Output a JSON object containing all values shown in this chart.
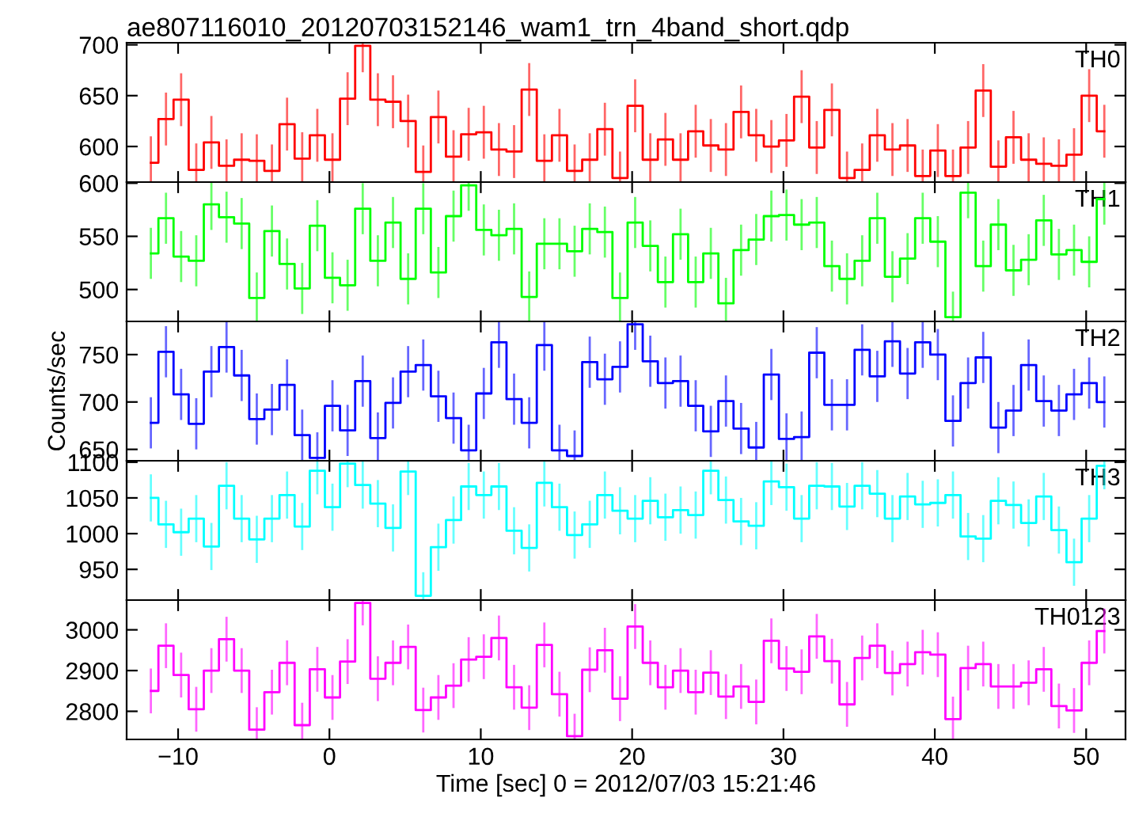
{
  "chart_data": [
    {
      "type": "step",
      "title": "ae807116010_20120703152146_wam1_trn_4band_short.qdp",
      "tick_labels": "y",
      "x": [
        -11.8,
        -10.8,
        -9.8,
        -8.8,
        -7.8,
        -6.8,
        -5.8,
        -4.8,
        -3.8,
        -2.8,
        -1.8,
        -0.8,
        0.2,
        1.2,
        2.2,
        3.2,
        4.2,
        5.2,
        6.2,
        7.2,
        8.2,
        9.2,
        10.2,
        11.2,
        12.2,
        13.2,
        14.2,
        15.2,
        16.2,
        17.2,
        18.2,
        19.2,
        20.2,
        21.2,
        22.2,
        23.2,
        24.2,
        25.2,
        26.2,
        27.2,
        28.2,
        29.2,
        30.2,
        31.2,
        32.2,
        33.2,
        34.2,
        35.2,
        36.2,
        37.2,
        38.2,
        39.2,
        40.2,
        41.2,
        42.2,
        43.2,
        44.2,
        45.2,
        46.2,
        47.2,
        48.2,
        49.2,
        50.2,
        51.2
      ],
      "xlim": [
        -13.4,
        52.6
      ],
      "xticks": [
        -10,
        0,
        10,
        20,
        30,
        40,
        50
      ],
      "ylim": [
        565,
        702
      ],
      "yticks": [
        600,
        650,
        700
      ],
      "series": [
        {
          "name": "TH0",
          "color": "#ff0000",
          "values": [
            584,
            627,
            646,
            577,
            604,
            581,
            587,
            586,
            576,
            622,
            588,
            611,
            587,
            647,
            699,
            646,
            644,
            625,
            575,
            629,
            590,
            612,
            614,
            597,
            595,
            656,
            586,
            611,
            576,
            587,
            617,
            569,
            640,
            587,
            607,
            587,
            615,
            601,
            597,
            634,
            611,
            600,
            606,
            649,
            599,
            636,
            569,
            577,
            611,
            597,
            601,
            571,
            596,
            571,
            599,
            655,
            580,
            609,
            587,
            583,
            581,
            592,
            650,
            615
          ],
          "errors": [
            26,
            26,
            26,
            26,
            26,
            26,
            26,
            26,
            26,
            26,
            26,
            26,
            26,
            26,
            26,
            26,
            26,
            26,
            26,
            26,
            26,
            26,
            26,
            26,
            26,
            26,
            26,
            26,
            26,
            26,
            26,
            26,
            26,
            26,
            26,
            26,
            26,
            26,
            26,
            26,
            26,
            26,
            26,
            26,
            26,
            26,
            26,
            26,
            26,
            26,
            26,
            26,
            26,
            26,
            26,
            26,
            26,
            26,
            26,
            26,
            26,
            26,
            26,
            26
          ]
        }
      ]
    },
    {
      "type": "step",
      "tick_labels": "y",
      "x": [
        -11.8,
        -10.8,
        -9.8,
        -8.8,
        -7.8,
        -6.8,
        -5.8,
        -4.8,
        -3.8,
        -2.8,
        -1.8,
        -0.8,
        0.2,
        1.2,
        2.2,
        3.2,
        4.2,
        5.2,
        6.2,
        7.2,
        8.2,
        9.2,
        10.2,
        11.2,
        12.2,
        13.2,
        14.2,
        15.2,
        16.2,
        17.2,
        18.2,
        19.2,
        20.2,
        21.2,
        22.2,
        23.2,
        24.2,
        25.2,
        26.2,
        27.2,
        28.2,
        29.2,
        30.2,
        31.2,
        32.2,
        33.2,
        34.2,
        35.2,
        36.2,
        37.2,
        38.2,
        39.2,
        40.2,
        41.2,
        42.2,
        43.2,
        44.2,
        45.2,
        46.2,
        47.2,
        48.2,
        49.2,
        50.2,
        51.2
      ],
      "xlim": [
        -13.4,
        52.6
      ],
      "xticks": [
        -10,
        0,
        10,
        20,
        30,
        40,
        50
      ],
      "ylim": [
        470,
        601
      ],
      "yticks": [
        500,
        550,
        600
      ],
      "series": [
        {
          "name": "TH1",
          "color": "#00ff00",
          "values": [
            534,
            567,
            531,
            527,
            580,
            568,
            562,
            492,
            555,
            524,
            501,
            560,
            511,
            504,
            576,
            527,
            563,
            510,
            576,
            516,
            569,
            598,
            556,
            551,
            557,
            493,
            543,
            543,
            536,
            557,
            554,
            492,
            563,
            541,
            507,
            552,
            507,
            534,
            487,
            537,
            547,
            569,
            570,
            561,
            563,
            522,
            510,
            527,
            567,
            512,
            529,
            567,
            545,
            474,
            591,
            522,
            561,
            518,
            528,
            565,
            533,
            537,
            526,
            585
          ],
          "errors": [
            24,
            24,
            24,
            24,
            24,
            24,
            24,
            24,
            24,
            24,
            24,
            24,
            24,
            24,
            24,
            24,
            24,
            24,
            24,
            24,
            24,
            24,
            24,
            24,
            24,
            24,
            24,
            24,
            24,
            24,
            24,
            24,
            24,
            24,
            24,
            24,
            24,
            24,
            24,
            24,
            24,
            24,
            24,
            24,
            24,
            24,
            24,
            24,
            24,
            24,
            24,
            24,
            24,
            24,
            24,
            24,
            24,
            24,
            24,
            24,
            24,
            24,
            24,
            24
          ]
        }
      ]
    },
    {
      "type": "step",
      "tick_labels": "y",
      "ylabel": "Counts/sec",
      "x": [
        -11.8,
        -10.8,
        -9.8,
        -8.8,
        -7.8,
        -6.8,
        -5.8,
        -4.8,
        -3.8,
        -2.8,
        -1.8,
        -0.8,
        0.2,
        1.2,
        2.2,
        3.2,
        4.2,
        5.2,
        6.2,
        7.2,
        8.2,
        9.2,
        10.2,
        11.2,
        12.2,
        13.2,
        14.2,
        15.2,
        16.2,
        17.2,
        18.2,
        19.2,
        20.2,
        21.2,
        22.2,
        23.2,
        24.2,
        25.2,
        26.2,
        27.2,
        28.2,
        29.2,
        30.2,
        31.2,
        32.2,
        33.2,
        34.2,
        35.2,
        36.2,
        37.2,
        38.2,
        39.2,
        40.2,
        41.2,
        42.2,
        43.2,
        44.2,
        45.2,
        46.2,
        47.2,
        48.2,
        49.2,
        50.2,
        51.2
      ],
      "xlim": [
        -13.4,
        52.6
      ],
      "xticks": [
        -10,
        0,
        10,
        20,
        30,
        40,
        50
      ],
      "ylim": [
        638,
        785
      ],
      "yticks": [
        650,
        700,
        750
      ],
      "series": [
        {
          "name": "TH2",
          "color": "#0000ff",
          "values": [
            678,
            753,
            708,
            677,
            732,
            758,
            728,
            682,
            692,
            718,
            665,
            641,
            696,
            670,
            722,
            662,
            699,
            732,
            739,
            706,
            683,
            649,
            709,
            763,
            703,
            678,
            760,
            649,
            643,
            742,
            724,
            737,
            782,
            743,
            720,
            722,
            696,
            669,
            701,
            672,
            652,
            729,
            661,
            663,
            752,
            697,
            697,
            755,
            727,
            764,
            730,
            763,
            750,
            680,
            720,
            747,
            673,
            691,
            739,
            701,
            691,
            708,
            720,
            700
          ],
          "errors": [
            27,
            27,
            27,
            27,
            27,
            27,
            27,
            27,
            27,
            27,
            27,
            27,
            27,
            27,
            27,
            27,
            27,
            27,
            27,
            27,
            27,
            27,
            27,
            27,
            27,
            27,
            27,
            27,
            27,
            27,
            27,
            27,
            27,
            27,
            27,
            27,
            27,
            27,
            27,
            27,
            27,
            27,
            27,
            27,
            27,
            27,
            27,
            27,
            27,
            27,
            27,
            27,
            27,
            27,
            27,
            27,
            27,
            27,
            27,
            27,
            27,
            27,
            27,
            27
          ]
        }
      ]
    },
    {
      "type": "step",
      "tick_labels": "y",
      "x": [
        -11.8,
        -10.8,
        -9.8,
        -8.8,
        -7.8,
        -6.8,
        -5.8,
        -4.8,
        -3.8,
        -2.8,
        -1.8,
        -0.8,
        0.2,
        1.2,
        2.2,
        3.2,
        4.2,
        5.2,
        6.2,
        7.2,
        8.2,
        9.2,
        10.2,
        11.2,
        12.2,
        13.2,
        14.2,
        15.2,
        16.2,
        17.2,
        18.2,
        19.2,
        20.2,
        21.2,
        22.2,
        23.2,
        24.2,
        25.2,
        26.2,
        27.2,
        28.2,
        29.2,
        30.2,
        31.2,
        32.2,
        33.2,
        34.2,
        35.2,
        36.2,
        37.2,
        38.2,
        39.2,
        40.2,
        41.2,
        42.2,
        43.2,
        44.2,
        45.2,
        46.2,
        47.2,
        48.2,
        49.2,
        50.2,
        51.2
      ],
      "xlim": [
        -13.4,
        52.6
      ],
      "xticks": [
        -10,
        0,
        10,
        20,
        30,
        40,
        50
      ],
      "ylim": [
        907,
        1102
      ],
      "yticks": [
        950,
        1000,
        1050,
        1100
      ],
      "series": [
        {
          "name": "TH3",
          "color": "#00ffff",
          "values": [
            1050,
            1013,
            1002,
            1021,
            982,
            1067,
            1021,
            992,
            1021,
            1054,
            1010,
            1088,
            1037,
            1098,
            1068,
            1042,
            1008,
            1087,
            913,
            981,
            1019,
            1066,
            1054,
            1066,
            1004,
            980,
            1071,
            1037,
            998,
            1013,
            1054,
            1032,
            1021,
            1046,
            1023,
            1033,
            1026,
            1088,
            1047,
            1017,
            1011,
            1073,
            1065,
            1021,
            1067,
            1066,
            1038,
            1067,
            1056,
            1021,
            1052,
            1041,
            1043,
            1054,
            996,
            993,
            1046,
            1040,
            1015,
            1052,
            1005,
            960,
            1021,
            1095
          ],
          "errors": [
            33,
            33,
            33,
            33,
            33,
            33,
            33,
            33,
            33,
            33,
            33,
            33,
            33,
            33,
            33,
            33,
            33,
            33,
            33,
            33,
            33,
            33,
            33,
            33,
            33,
            33,
            33,
            33,
            33,
            33,
            33,
            33,
            33,
            33,
            33,
            33,
            33,
            33,
            33,
            33,
            33,
            33,
            33,
            33,
            33,
            33,
            33,
            33,
            33,
            33,
            33,
            33,
            33,
            33,
            33,
            33,
            33,
            33,
            33,
            33,
            33,
            33,
            33,
            33
          ]
        }
      ]
    },
    {
      "type": "step",
      "xlabel": "Time [sec] 0 = 2012/07/03 15:21:46",
      "x": [
        -11.8,
        -10.8,
        -9.8,
        -8.8,
        -7.8,
        -6.8,
        -5.8,
        -4.8,
        -3.8,
        -2.8,
        -1.8,
        -0.8,
        0.2,
        1.2,
        2.2,
        3.2,
        4.2,
        5.2,
        6.2,
        7.2,
        8.2,
        9.2,
        10.2,
        11.2,
        12.2,
        13.2,
        14.2,
        15.2,
        16.2,
        17.2,
        18.2,
        19.2,
        20.2,
        21.2,
        22.2,
        23.2,
        24.2,
        25.2,
        26.2,
        27.2,
        28.2,
        29.2,
        30.2,
        31.2,
        32.2,
        33.2,
        34.2,
        35.2,
        36.2,
        37.2,
        38.2,
        39.2,
        40.2,
        41.2,
        42.2,
        43.2,
        44.2,
        45.2,
        46.2,
        47.2,
        48.2,
        49.2,
        50.2,
        51.2
      ],
      "xlim": [
        -13.4,
        52.6
      ],
      "xticks": [
        -10,
        0,
        10,
        20,
        30,
        40,
        50
      ],
      "ylim": [
        2731,
        3073
      ],
      "yticks": [
        2800,
        2900,
        3000
      ],
      "series": [
        {
          "name": "TH0123",
          "color": "#ff00ff",
          "values": [
            2850,
            2961,
            2889,
            2805,
            2900,
            2977,
            2900,
            2755,
            2847,
            2919,
            2766,
            2903,
            2834,
            2922,
            3066,
            2880,
            2919,
            2958,
            2803,
            2834,
            2863,
            2927,
            2934,
            2980,
            2859,
            2809,
            2963,
            2842,
            2739,
            2902,
            2950,
            2831,
            3008,
            2919,
            2859,
            2900,
            2847,
            2895,
            2836,
            2861,
            2823,
            2973,
            2905,
            2897,
            2984,
            2923,
            2817,
            2931,
            2961,
            2894,
            2916,
            2945,
            2939,
            2781,
            2906,
            2916,
            2861,
            2861,
            2870,
            2903,
            2813,
            2802,
            2919,
            2997
          ],
          "errors": [
            55,
            55,
            55,
            55,
            55,
            55,
            55,
            55,
            55,
            55,
            55,
            55,
            55,
            55,
            55,
            55,
            55,
            55,
            55,
            55,
            55,
            55,
            55,
            55,
            55,
            55,
            55,
            55,
            55,
            55,
            55,
            55,
            55,
            55,
            55,
            55,
            55,
            55,
            55,
            55,
            55,
            55,
            55,
            55,
            55,
            55,
            55,
            55,
            55,
            55,
            55,
            55,
            55,
            55,
            55,
            55,
            55,
            55,
            55,
            55,
            55,
            55,
            55,
            55
          ]
        }
      ]
    }
  ]
}
